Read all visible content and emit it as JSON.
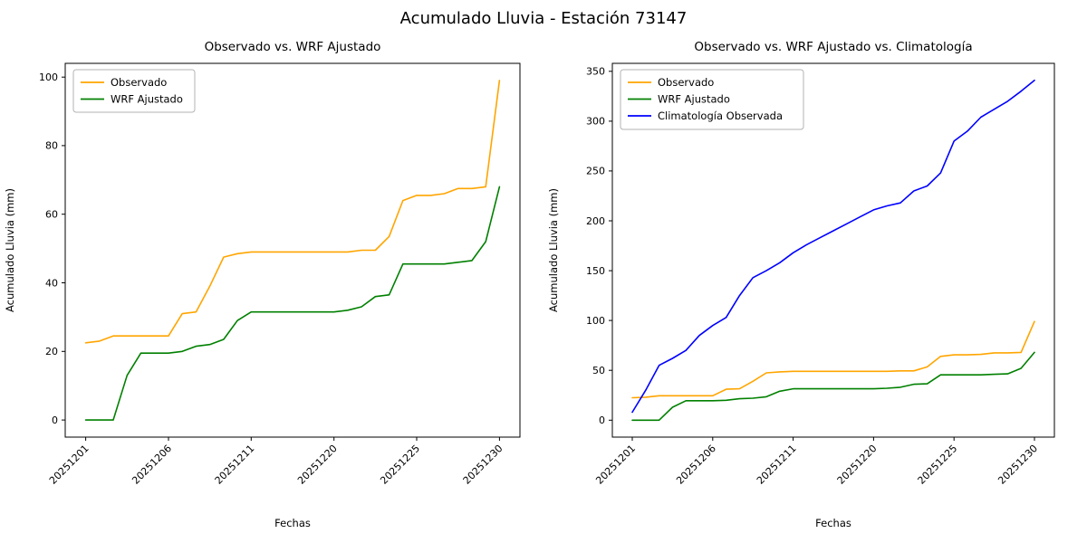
{
  "figure": {
    "title": "Acumulado Lluvia - Estación 73147",
    "background": "#ffffff"
  },
  "chart_data": [
    {
      "type": "line",
      "name": "observado-vs-wrf",
      "title": "Observado vs. WRF Ajustado",
      "xlabel": "Fechas",
      "ylabel": "Acumulado Lluvia (mm)",
      "legend_position": "upper left",
      "grid": false,
      "ylim": [
        -5,
        104
      ],
      "yticks": [
        0,
        20,
        40,
        60,
        80,
        100
      ],
      "xtick_labels": [
        "20251201",
        "20251206",
        "20251211",
        "20251220",
        "20251225",
        "20251230"
      ],
      "xtick_indices": [
        0,
        6,
        12,
        18,
        24,
        30
      ],
      "series": [
        {
          "name": "Observado",
          "color": "#FFA500",
          "values": [
            22.5,
            23,
            24.5,
            24.5,
            24.5,
            24.5,
            24.5,
            31,
            31.5,
            39,
            47.5,
            48.5,
            49,
            49,
            49,
            49,
            49,
            49,
            49,
            49,
            49.5,
            49.5,
            53.5,
            64,
            65.5,
            65.5,
            66,
            67.5,
            67.5,
            68,
            99
          ]
        },
        {
          "name": "WRF Ajustado",
          "color": "#008000",
          "values": [
            0,
            0,
            0,
            13,
            19.5,
            19.5,
            19.5,
            20,
            21.5,
            22,
            23.5,
            29,
            31.5,
            31.5,
            31.5,
            31.5,
            31.5,
            31.5,
            31.5,
            32,
            33,
            36,
            36.5,
            45.5,
            45.5,
            45.5,
            45.5,
            46,
            46.5,
            52,
            68
          ]
        }
      ]
    },
    {
      "type": "line",
      "name": "observado-vs-wrf-vs-climatologia",
      "title": "Observado vs. WRF Ajustado vs. Climatología",
      "xlabel": "Fechas",
      "ylabel": "Acumulado Lluvia (mm)",
      "legend_position": "upper left",
      "grid": false,
      "ylim": [
        -17,
        358
      ],
      "yticks": [
        0,
        50,
        100,
        150,
        200,
        250,
        300,
        350
      ],
      "xtick_labels": [
        "20251201",
        "20251206",
        "20251211",
        "20251220",
        "20251225",
        "20251230"
      ],
      "xtick_indices": [
        0,
        6,
        12,
        18,
        24,
        30
      ],
      "series": [
        {
          "name": "Observado",
          "color": "#FFA500",
          "values": [
            22.5,
            23,
            24.5,
            24.5,
            24.5,
            24.5,
            24.5,
            31,
            31.5,
            39,
            47.5,
            48.5,
            49,
            49,
            49,
            49,
            49,
            49,
            49,
            49,
            49.5,
            49.5,
            53.5,
            64,
            65.5,
            65.5,
            66,
            67.5,
            67.5,
            68,
            99
          ]
        },
        {
          "name": "WRF Ajustado",
          "color": "#008000",
          "values": [
            0,
            0,
            0,
            13,
            19.5,
            19.5,
            19.5,
            20,
            21.5,
            22,
            23.5,
            29,
            31.5,
            31.5,
            31.5,
            31.5,
            31.5,
            31.5,
            31.5,
            32,
            33,
            36,
            36.5,
            45.5,
            45.5,
            45.5,
            45.5,
            46,
            46.5,
            52,
            68
          ]
        },
        {
          "name": "Climatología Observada",
          "color": "#0000FF",
          "values": [
            8,
            30,
            55,
            62,
            70,
            85,
            95,
            103,
            125,
            143,
            150,
            158,
            168,
            176,
            183,
            190,
            197,
            204,
            211,
            215,
            218,
            230,
            235,
            248,
            280,
            290,
            304,
            312,
            320,
            330,
            341
          ]
        }
      ]
    }
  ]
}
